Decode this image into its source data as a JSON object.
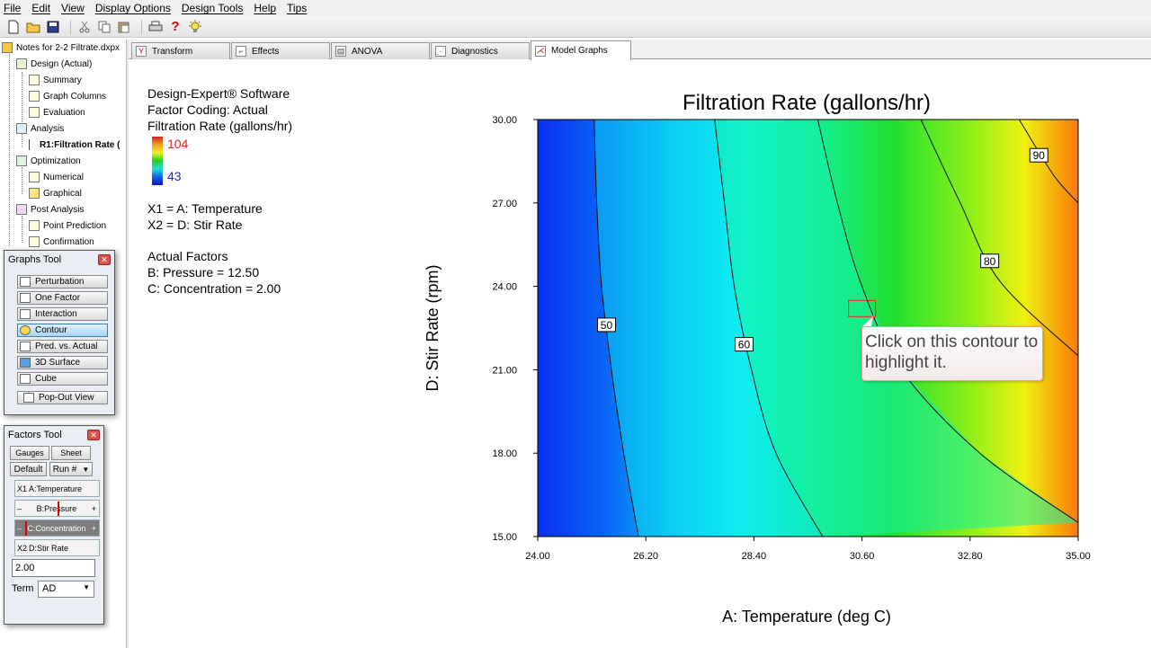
{
  "menu": [
    "File",
    "Edit",
    "View",
    "Display Options",
    "Design Tools",
    "Help",
    "Tips"
  ],
  "toolbar_icons": [
    "new-file-icon",
    "open-folder-icon",
    "save-icon",
    "cut-icon",
    "copy-icon",
    "paste-icon",
    "print-icon",
    "help-icon",
    "tip-bulb-icon"
  ],
  "tree": {
    "root": "Notes for 2-2 Filtrate.dxpx",
    "design": "Design (Actual)",
    "summary": "Summary",
    "graph_columns": "Graph Columns",
    "evaluation": "Evaluation",
    "analysis": "Analysis",
    "r1": "R1:Filtration Rate (",
    "optimization": "Optimization",
    "numerical": "Numerical",
    "graphical": "Graphical",
    "post_analysis": "Post Analysis",
    "point_prediction": "Point Prediction",
    "confirmation": "Confirmation"
  },
  "tabs": [
    "Transform",
    "Effects",
    "ANOVA",
    "Diagnostics",
    "Model Graphs"
  ],
  "graphs_tool": {
    "title": "Graphs Tool",
    "buttons": [
      "Perturbation",
      "One Factor",
      "Interaction",
      "Contour",
      "Pred. vs. Actual",
      "3D Surface",
      "Cube",
      "Pop-Out View"
    ],
    "active": "Contour"
  },
  "factors_tool": {
    "title": "Factors Tool",
    "tab_gauges": "Gauges",
    "tab_sheet": "Sheet",
    "default_label": "Default",
    "run_label": "Run #",
    "x1_tag": "X1",
    "x1_name": "A:Temperature",
    "pressure_name": "B:Pressure",
    "concentration_name": "C:Concentration",
    "x2_tag": "X2",
    "x2_name": "D:Stir Rate",
    "value": "2.00",
    "term_label": "Term",
    "term_value": "AD",
    "minus": "–",
    "plus": "+"
  },
  "info": {
    "software": "Design-Expert® Software",
    "coding": "Factor Coding: Actual",
    "response": "Filtration Rate (gallons/hr)",
    "max_value": "104",
    "min_value": "43",
    "x1": "X1 = A: Temperature",
    "x2": "X2 = D: Stir Rate",
    "actual_header": "Actual Factors",
    "factor_b": "B: Pressure = 12.50",
    "factor_c": "C: Concentration = 2.00"
  },
  "colors": {
    "max_value_color": "#e2211c",
    "min_value_color": "#2222cc",
    "highlight_box": "#d73a2a"
  },
  "chart_data": {
    "type": "contour",
    "title": "Filtration Rate (gallons/hr)",
    "xlabel": "A: Temperature (deg C)",
    "ylabel": "D: Stir Rate (rpm)",
    "xlim": [
      24.0,
      35.0
    ],
    "ylim": [
      15.0,
      30.0
    ],
    "xticks": [
      "24.00",
      "26.20",
      "28.40",
      "30.60",
      "32.80",
      "35.00"
    ],
    "yticks": [
      "15.00",
      "18.00",
      "21.00",
      "24.00",
      "27.00",
      "30.00"
    ],
    "color_range": [
      43,
      104
    ],
    "contour_levels": [
      {
        "level": "50",
        "points": [
          [
            25.15,
            30.0
          ],
          [
            25.2,
            27.0
          ],
          [
            25.3,
            24.0
          ],
          [
            25.5,
            21.0
          ],
          [
            25.75,
            18.0
          ],
          [
            26.05,
            15.0
          ]
        ]
      },
      {
        "level": "60",
        "points": [
          [
            27.6,
            30.0
          ],
          [
            27.8,
            27.0
          ],
          [
            28.0,
            24.0
          ],
          [
            28.35,
            21.0
          ],
          [
            28.85,
            18.0
          ],
          [
            29.8,
            15.0
          ]
        ]
      },
      {
        "level": "70",
        "points": [
          [
            29.7,
            30.0
          ],
          [
            30.1,
            27.0
          ],
          [
            30.6,
            24.0
          ],
          [
            31.4,
            21.0
          ],
          [
            33.0,
            18.0
          ],
          [
            35.0,
            15.5
          ]
        ]
      },
      {
        "level": "80",
        "points": [
          [
            31.8,
            30.0
          ],
          [
            32.6,
            27.0
          ],
          [
            33.4,
            24.2
          ],
          [
            35.0,
            21.5
          ]
        ]
      },
      {
        "level": "90",
        "points": [
          [
            33.8,
            30.0
          ],
          [
            34.5,
            28.0
          ],
          [
            35.0,
            27.0
          ]
        ]
      }
    ],
    "labeled_levels": [
      {
        "text": "50",
        "x": 25.4,
        "y": 22.6
      },
      {
        "text": "60",
        "x": 28.2,
        "y": 21.9
      },
      {
        "text": "80",
        "x": 33.2,
        "y": 24.9
      },
      {
        "text": "90",
        "x": 34.2,
        "y": 28.7
      }
    ],
    "highlight_point": {
      "x": 30.6,
      "y": 23.2
    },
    "callout": "Click on this contour to highlight it."
  }
}
